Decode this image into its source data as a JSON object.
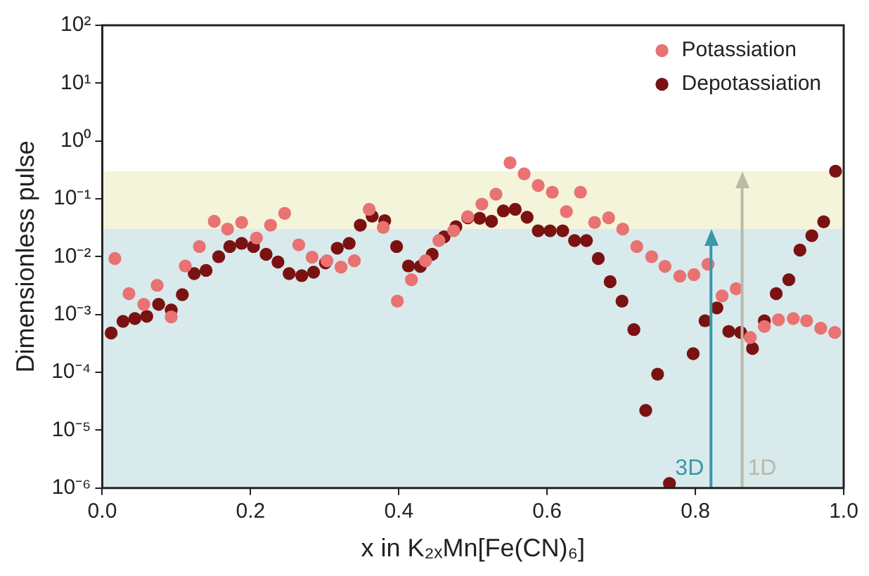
{
  "chart_data": {
    "type": "scatter",
    "xlabel": "x in K₂ₓMn[Fe(CN)₆]",
    "ylabel": "Dimensionless pulse",
    "log": "y",
    "grid": false,
    "legend": "top right",
    "marker": "circle",
    "xlim": [
      0,
      1
    ],
    "xticks": [
      {
        "value": 0,
        "label": "0.0"
      },
      {
        "value": 0.2,
        "label": "0.2"
      },
      {
        "value": 0.4,
        "label": "0.4"
      },
      {
        "value": 0.6,
        "label": "0.6"
      },
      {
        "value": 0.8,
        "label": "0.8"
      },
      {
        "value": 1,
        "label": "1.0"
      }
    ],
    "ylim": [
      1e-06,
      100
    ],
    "yticks": [
      {
        "value": 1e-06,
        "label": "10⁻⁶"
      },
      {
        "value": 1e-05,
        "label": "10⁻⁵"
      },
      {
        "value": 0.0001,
        "label": "10⁻⁴"
      },
      {
        "value": 0.001,
        "label": "10⁻³"
      },
      {
        "value": 0.01,
        "label": "10⁻²"
      },
      {
        "value": 0.1,
        "label": "10⁻¹"
      },
      {
        "value": 1,
        "label": "10⁰"
      },
      {
        "value": 10,
        "label": "10¹"
      },
      {
        "value": 100,
        "label": "10²"
      }
    ],
    "bands": [
      {
        "axis": "y",
        "from": 1e-06,
        "to": 0.03,
        "color": "#d9eaed"
      },
      {
        "axis": "y",
        "from": 0.03,
        "to": 0.3,
        "color": "#f4f4da"
      }
    ],
    "ref_lines": [
      {
        "axis": "x",
        "value": 0.821,
        "label": "3D",
        "color": "#3a98a8"
      },
      {
        "axis": "x",
        "value": 0.863,
        "label": "1D",
        "color": "#b9baa8"
      }
    ],
    "series": [
      {
        "name": "Potassiation",
        "color": "#e97272",
        "x": [
          0.017,
          0.036,
          0.056,
          0.074,
          0.093,
          0.112,
          0.131,
          0.151,
          0.169,
          0.188,
          0.208,
          0.227,
          0.246,
          0.265,
          0.283,
          0.303,
          0.322,
          0.34,
          0.36,
          0.379,
          0.398,
          0.417,
          0.436,
          0.454,
          0.474,
          0.493,
          0.512,
          0.531,
          0.55,
          0.569,
          0.588,
          0.607,
          0.626,
          0.645,
          0.664,
          0.683,
          0.702,
          0.721,
          0.741,
          0.759,
          0.779,
          0.798,
          0.817,
          0.836,
          0.855,
          0.874,
          0.893,
          0.912,
          0.932,
          0.95,
          0.969,
          0.988
        ],
        "values": [
          0.0093,
          0.0023,
          0.0015,
          0.0032,
          0.00091,
          0.0069,
          0.015,
          0.041,
          0.03,
          0.039,
          0.021,
          0.035,
          0.056,
          0.016,
          0.0098,
          0.0085,
          0.0066,
          0.0085,
          0.066,
          0.032,
          0.0017,
          0.004,
          0.0085,
          0.019,
          0.028,
          0.049,
          0.081,
          0.12,
          0.42,
          0.27,
          0.17,
          0.13,
          0.06,
          0.13,
          0.039,
          0.047,
          0.03,
          0.015,
          0.01,
          0.0068,
          0.0046,
          0.0049,
          0.0074,
          0.0021,
          0.0028,
          0.0004,
          0.00062,
          0.00081,
          0.00085,
          0.00078,
          0.00058,
          0.00049
        ]
      },
      {
        "name": "Depotassiation",
        "color": "#7b1212",
        "x": [
          0.012,
          0.028,
          0.044,
          0.06,
          0.076,
          0.093,
          0.108,
          0.124,
          0.14,
          0.157,
          0.172,
          0.188,
          0.204,
          0.221,
          0.237,
          0.252,
          0.269,
          0.285,
          0.301,
          0.317,
          0.333,
          0.348,
          0.364,
          0.381,
          0.397,
          0.413,
          0.429,
          0.445,
          0.461,
          0.477,
          0.493,
          0.509,
          0.525,
          0.541,
          0.557,
          0.573,
          0.588,
          0.604,
          0.621,
          0.637,
          0.653,
          0.669,
          0.685,
          0.701,
          0.717,
          0.733,
          0.749,
          0.765,
          0.797,
          0.813,
          0.829,
          0.845,
          0.861,
          0.877,
          0.893,
          0.909,
          0.926,
          0.941,
          0.957,
          0.973,
          0.989
        ],
        "values": [
          0.00048,
          0.00076,
          0.00085,
          0.00093,
          0.0015,
          0.0012,
          0.0022,
          0.0051,
          0.0058,
          0.01,
          0.015,
          0.017,
          0.015,
          0.011,
          0.0081,
          0.0051,
          0.0047,
          0.0054,
          0.0078,
          0.014,
          0.017,
          0.035,
          0.05,
          0.042,
          0.015,
          0.0069,
          0.0068,
          0.011,
          0.022,
          0.033,
          0.047,
          0.046,
          0.041,
          0.062,
          0.066,
          0.048,
          0.028,
          0.028,
          0.028,
          0.019,
          0.019,
          0.0093,
          0.0037,
          0.0017,
          0.00055,
          2.2e-05,
          9.3e-05,
          1.2e-06,
          0.00021,
          0.00078,
          0.0013,
          0.00051,
          0.00049,
          0.00026,
          0.00078,
          0.0023,
          0.004,
          0.013,
          0.023,
          0.04,
          0.3
        ]
      }
    ]
  }
}
